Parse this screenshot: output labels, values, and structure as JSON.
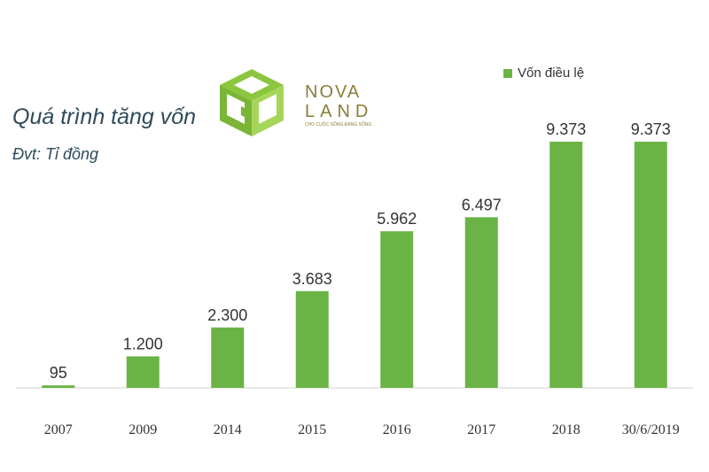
{
  "header": {
    "title": "Quá trình tăng vốn",
    "unit": "Đvt: Tỉ đồng"
  },
  "legend": {
    "label": "Vốn điều lệ"
  },
  "logo": {
    "wordmark_top": "NOVA",
    "wordmark_bottom": "LAND",
    "tagline": "CHO CUỘC SỐNG ĐÁNG SỐNG",
    "icon": "nova-cube-logo",
    "green": "#8cc63f",
    "olive": "#8a7d38"
  },
  "colors": {
    "bar": "#6ab446",
    "axis": "#d0d0d0",
    "text": "#333333"
  },
  "chart_data": {
    "type": "bar",
    "categories": [
      "2007",
      "2009",
      "2014",
      "2015",
      "2016",
      "2017",
      "2018",
      "30/6/2019"
    ],
    "series": [
      {
        "name": "Vốn điều lệ",
        "values": [
          95,
          1200,
          2300,
          3683,
          5962,
          6497,
          9373,
          9373
        ],
        "labels": [
          "95",
          "1.200",
          "2.300",
          "3.683",
          "5.962",
          "6.497",
          "9.373",
          "9.373"
        ]
      }
    ],
    "ylim": [
      0,
      10000
    ],
    "grid": false,
    "legend_position": "top-right"
  }
}
